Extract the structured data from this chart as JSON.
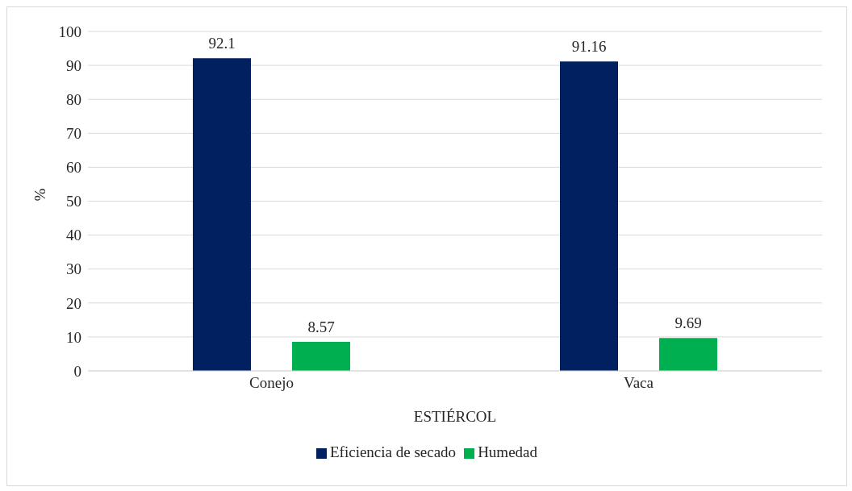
{
  "chart_data": {
    "type": "bar",
    "xlabel": "ESTIÉRCOL",
    "ylabel": "%",
    "categories": [
      "Conejo",
      "Vaca"
    ],
    "series": [
      {
        "name": "Eficiencia de secado",
        "color": "#002060",
        "values": [
          92.1,
          91.16
        ]
      },
      {
        "name": "Humedad",
        "color": "#00b050",
        "values": [
          8.57,
          9.69
        ]
      }
    ],
    "ylim": [
      0,
      100
    ],
    "yticks": [
      0,
      10,
      20,
      30,
      40,
      50,
      60,
      70,
      80,
      90,
      100
    ],
    "grid": "y",
    "legend": "bottom",
    "data_labels": true
  }
}
